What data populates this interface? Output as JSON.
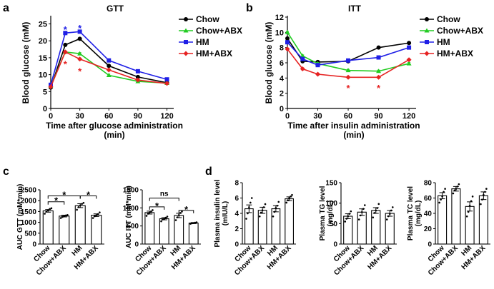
{
  "panels": {
    "a": "a",
    "b": "b",
    "c": "c",
    "d": "d"
  },
  "colors": {
    "chow": "#000000",
    "chow_abx": "#22cc22",
    "hm": "#1f1fe6",
    "hm_abx": "#e62222"
  },
  "chart_data": [
    {
      "id": "gtt",
      "type": "line",
      "title": "GTT",
      "xlabel": "Time after glucose administration",
      "xlabel2": "(min)",
      "ylabel": "Blood glucose (mM)",
      "x": [
        0,
        15,
        30,
        60,
        90,
        120
      ],
      "xticks": [
        "0",
        "30",
        "60",
        "90",
        "120"
      ],
      "xtick_values": [
        0,
        30,
        60,
        90,
        120
      ],
      "yticks": [
        "0",
        "5",
        "10",
        "15",
        "20",
        "25"
      ],
      "ylim": [
        0,
        27
      ],
      "xlim": [
        0,
        127
      ],
      "series": [
        {
          "name": "Chow",
          "color_key": "chow",
          "values": [
            6.2,
            18.8,
            20.6,
            12.6,
            9.3,
            7.6
          ]
        },
        {
          "name": "Chow+ABX",
          "color_key": "chow_abx",
          "values": [
            6.6,
            16.7,
            16.2,
            9.8,
            8.0,
            7.5
          ]
        },
        {
          "name": "HM",
          "color_key": "hm",
          "values": [
            7.0,
            22.3,
            22.7,
            14.2,
            11.0,
            8.6
          ]
        },
        {
          "name": "HM+ABX",
          "color_key": "hm_abx",
          "values": [
            6.4,
            16.7,
            14.6,
            11.4,
            8.4,
            7.4
          ]
        }
      ],
      "annotations": [
        {
          "text": "*",
          "x": 15,
          "y": 23.6,
          "color_key": "hm"
        },
        {
          "text": "*",
          "x": 30,
          "y": 24.0,
          "color_key": "hm"
        },
        {
          "text": "*",
          "x": 15,
          "y": 13.4,
          "color_key": "hm_abx"
        },
        {
          "text": "*",
          "x": 30,
          "y": 11.3,
          "color_key": "hm_abx"
        }
      ]
    },
    {
      "id": "itt",
      "type": "line",
      "title": "ITT",
      "xlabel": "Time after insulin administration",
      "xlabel2": "(min)",
      "ylabel": "Blood glucose (mM)",
      "x": [
        0,
        15,
        30,
        60,
        90,
        120
      ],
      "xticks": [
        "0",
        "30",
        "60",
        "90",
        "120"
      ],
      "xtick_values": [
        0,
        30,
        60,
        90,
        120
      ],
      "yticks": [
        "0",
        "2",
        "4",
        "6",
        "8",
        "10",
        "12"
      ],
      "ylim": [
        0,
        12
      ],
      "xlim": [
        0,
        127
      ],
      "series": [
        {
          "name": "Chow",
          "color_key": "chow",
          "values": [
            9.2,
            6.2,
            6.1,
            6.2,
            8.0,
            8.6
          ]
        },
        {
          "name": "Chow+ABX",
          "color_key": "chow_abx",
          "values": [
            10.0,
            6.9,
            5.9,
            5.0,
            4.9,
            5.9
          ]
        },
        {
          "name": "HM",
          "color_key": "hm",
          "values": [
            8.7,
            6.5,
            5.7,
            6.3,
            6.7,
            8.0
          ]
        },
        {
          "name": "HM+ABX",
          "color_key": "hm_abx",
          "values": [
            7.8,
            5.2,
            4.5,
            4.1,
            4.1,
            6.4
          ]
        }
      ],
      "annotations": [
        {
          "text": "*",
          "x": 60,
          "y": 2.8,
          "color_key": "hm_abx"
        },
        {
          "text": "*",
          "x": 90,
          "y": 2.8,
          "color_key": "hm_abx"
        }
      ]
    },
    {
      "id": "auc_gtt",
      "type": "bar",
      "ylabel": "AUC GTT (mM*min)",
      "categories": [
        "Chow",
        "Chow+ABX",
        "HM",
        "HM+ABX"
      ],
      "values": [
        1530,
        1290,
        1770,
        1330
      ],
      "errors": [
        60,
        40,
        90,
        60
      ],
      "points": [
        [
          1400,
          1500,
          1560,
          1620,
          1650
        ],
        [
          1200,
          1250,
          1300,
          1320,
          1340
        ],
        [
          1580,
          1700,
          1780,
          1850,
          1900
        ],
        [
          1200,
          1280,
          1330,
          1380,
          1460
        ]
      ],
      "yticks": [
        "0",
        "500",
        "1000",
        "1500",
        "2000",
        "2500"
      ],
      "ylim": [
        0,
        2500
      ],
      "brackets": [
        {
          "from": 0,
          "to": 1,
          "y": 1950,
          "text": "*"
        },
        {
          "from": 0,
          "to": 2,
          "y": 2220,
          "text": "*"
        },
        {
          "from": 2,
          "to": 3,
          "y": 2220,
          "text": "*"
        }
      ]
    },
    {
      "id": "auc_itt",
      "type": "bar",
      "ylabel": "AUC ITT (mM*min)",
      "categories": [
        "Chow",
        "Chow+ABX",
        "HM",
        "HM+ABX"
      ],
      "values": [
        870,
        700,
        790,
        580
      ],
      "errors": [
        40,
        30,
        60,
        15
      ],
      "points": [
        [
          780,
          840,
          870,
          900,
          940
        ],
        [
          630,
          680,
          700,
          730,
          760
        ],
        [
          660,
          740,
          800,
          860,
          900
        ],
        [
          560,
          575,
          580,
          590,
          600
        ]
      ],
      "yticks": [
        "0",
        "500",
        "1000",
        "1500"
      ],
      "ylim": [
        0,
        1500
      ],
      "brackets": [
        {
          "from": 0,
          "to": 1,
          "y": 1030,
          "text": "*"
        },
        {
          "from": 0,
          "to": 2,
          "y": 1270,
          "text": "ns"
        },
        {
          "from": 2,
          "to": 3,
          "y": 930,
          "text": "*"
        }
      ]
    },
    {
      "id": "insulin",
      "type": "bar",
      "ylabel": "Plasma insulin level",
      "ylabel2": "(mIU/L)",
      "categories": [
        "Chow",
        "Chow+ABX",
        "HM",
        "HM+ABX"
      ],
      "values": [
        4.6,
        4.4,
        4.6,
        5.9
      ],
      "errors": [
        0.5,
        0.4,
        0.4,
        0.25
      ],
      "points": [
        [
          3.3,
          4.0,
          4.8,
          5.4,
          6.0
        ],
        [
          3.6,
          4.1,
          4.4,
          4.8,
          5.2
        ],
        [
          3.6,
          4.2,
          4.7,
          5.0,
          5.5
        ],
        [
          5.4,
          5.7,
          6.0,
          6.2,
          6.4
        ]
      ],
      "yticks": [
        "0",
        "2",
        "4",
        "6",
        "8"
      ],
      "ylim": [
        0,
        8
      ],
      "brackets": []
    },
    {
      "id": "tg",
      "type": "bar",
      "ylabel": "Plasma TG level",
      "ylabel2": "(mg/dL)",
      "categories": [
        "Chow",
        "Chow+ABX",
        "HM",
        "HM+ABX"
      ],
      "values": [
        68,
        78,
        82,
        75
      ],
      "errors": [
        6,
        8,
        7,
        7
      ],
      "points": [
        [
          55,
          62,
          68,
          74,
          80
        ],
        [
          60,
          70,
          78,
          86,
          95
        ],
        [
          65,
          76,
          82,
          88,
          98
        ],
        [
          60,
          68,
          74,
          82,
          90
        ]
      ],
      "yticks": [
        "0",
        "50",
        "100",
        "150"
      ],
      "ylim": [
        0,
        150
      ],
      "brackets": []
    },
    {
      "id": "tc",
      "type": "bar",
      "ylabel": "Plasma TC level",
      "ylabel2": "(mg/dL)",
      "categories": [
        "Chow",
        "Chow+ABX",
        "HM",
        "HM+ABX"
      ],
      "values": [
        63,
        72,
        49,
        63
      ],
      "errors": [
        4,
        3,
        6,
        5
      ],
      "points": [
        [
          54,
          58,
          62,
          68,
          72
        ],
        [
          66,
          70,
          72,
          75,
          78
        ],
        [
          36,
          42,
          50,
          56,
          62
        ],
        [
          52,
          58,
          64,
          68,
          72
        ]
      ],
      "yticks": [
        "0",
        "20",
        "40",
        "60",
        "80"
      ],
      "ylim": [
        0,
        80
      ],
      "brackets": []
    }
  ]
}
